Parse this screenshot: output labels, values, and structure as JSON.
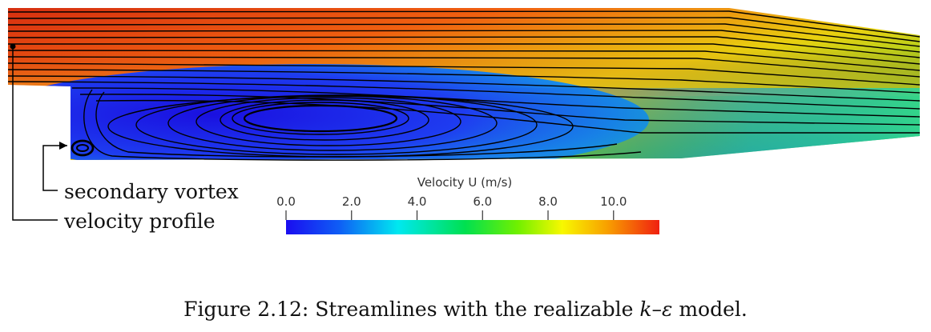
{
  "colorbar": {
    "title": "Velocity U (m/s)",
    "min": 0.0,
    "max": 11.4,
    "ticks": [
      "0.0",
      "2.0",
      "4.0",
      "6.0",
      "8.0",
      "10.0"
    ],
    "tick_values": [
      0,
      2,
      4,
      6,
      8,
      10
    ],
    "colormap": [
      "#1a0df0",
      "#0f5cf5",
      "#00e8f0",
      "#00e050",
      "#70f000",
      "#f8f800",
      "#f8a000",
      "#f02010"
    ]
  },
  "annotations": {
    "secondary_vortex": "secondary vortex",
    "velocity_profile": "velocity profile"
  },
  "caption": {
    "prefix": "Figure 2.12: Streamlines with the realizable ",
    "model_k": "k",
    "dash": "–",
    "model_eps": "ε",
    "suffix": " model."
  }
}
